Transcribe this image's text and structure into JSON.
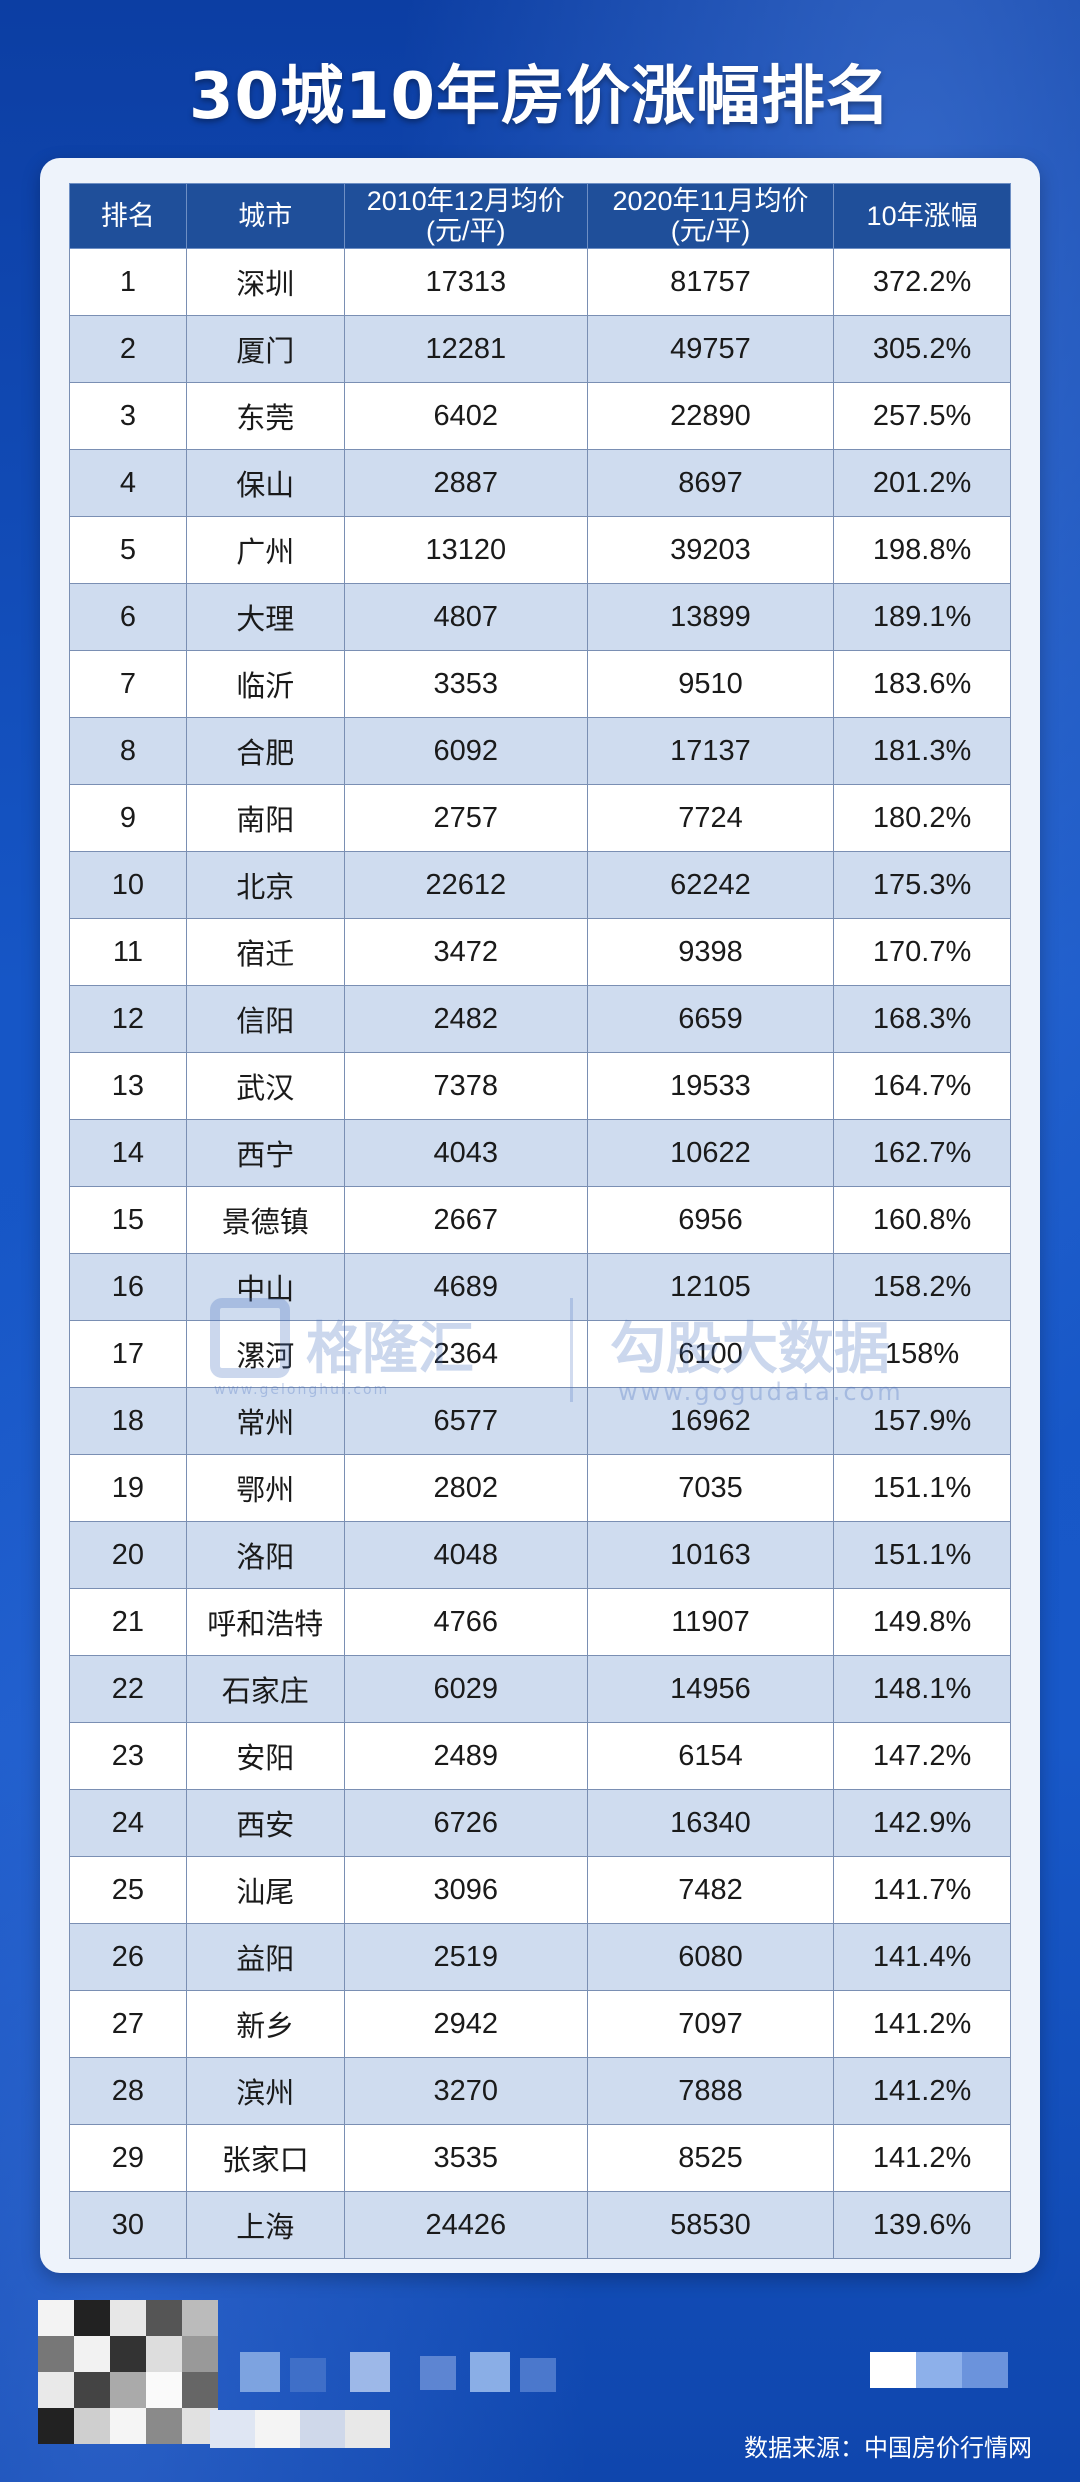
{
  "title": "30城10年房价涨幅排名",
  "table": {
    "headers": {
      "rank": "排名",
      "city": "城市",
      "price_2010_line1": "2010年12月均价",
      "price_2010_line2": "(元/平)",
      "price_2020_line1": "2020年11月均价",
      "price_2020_line2": "(元/平)",
      "growth": "10年涨幅"
    },
    "rows": [
      {
        "rank": "1",
        "city": "深圳",
        "p2010": "17313",
        "p2020": "81757",
        "growth": "372.2%"
      },
      {
        "rank": "2",
        "city": "厦门",
        "p2010": "12281",
        "p2020": "49757",
        "growth": "305.2%"
      },
      {
        "rank": "3",
        "city": "东莞",
        "p2010": "6402",
        "p2020": "22890",
        "growth": "257.5%"
      },
      {
        "rank": "4",
        "city": "保山",
        "p2010": "2887",
        "p2020": "8697",
        "growth": "201.2%"
      },
      {
        "rank": "5",
        "city": "广州",
        "p2010": "13120",
        "p2020": "39203",
        "growth": "198.8%"
      },
      {
        "rank": "6",
        "city": "大理",
        "p2010": "4807",
        "p2020": "13899",
        "growth": "189.1%"
      },
      {
        "rank": "7",
        "city": "临沂",
        "p2010": "3353",
        "p2020": "9510",
        "growth": "183.6%"
      },
      {
        "rank": "8",
        "city": "合肥",
        "p2010": "6092",
        "p2020": "17137",
        "growth": "181.3%"
      },
      {
        "rank": "9",
        "city": "南阳",
        "p2010": "2757",
        "p2020": "7724",
        "growth": "180.2%"
      },
      {
        "rank": "10",
        "city": "北京",
        "p2010": "22612",
        "p2020": "62242",
        "growth": "175.3%"
      },
      {
        "rank": "11",
        "city": "宿迁",
        "p2010": "3472",
        "p2020": "9398",
        "growth": "170.7%"
      },
      {
        "rank": "12",
        "city": "信阳",
        "p2010": "2482",
        "p2020": "6659",
        "growth": "168.3%"
      },
      {
        "rank": "13",
        "city": "武汉",
        "p2010": "7378",
        "p2020": "19533",
        "growth": "164.7%"
      },
      {
        "rank": "14",
        "city": "西宁",
        "p2010": "4043",
        "p2020": "10622",
        "growth": "162.7%"
      },
      {
        "rank": "15",
        "city": "景德镇",
        "p2010": "2667",
        "p2020": "6956",
        "growth": "160.8%"
      },
      {
        "rank": "16",
        "city": "中山",
        "p2010": "4689",
        "p2020": "12105",
        "growth": "158.2%"
      },
      {
        "rank": "17",
        "city": "漯河",
        "p2010": "2364",
        "p2020": "6100",
        "growth": "158%"
      },
      {
        "rank": "18",
        "city": "常州",
        "p2010": "6577",
        "p2020": "16962",
        "growth": "157.9%"
      },
      {
        "rank": "19",
        "city": "鄂州",
        "p2010": "2802",
        "p2020": "7035",
        "growth": "151.1%"
      },
      {
        "rank": "20",
        "city": "洛阳",
        "p2010": "4048",
        "p2020": "10163",
        "growth": "151.1%"
      },
      {
        "rank": "21",
        "city": "呼和浩特",
        "p2010": "4766",
        "p2020": "11907",
        "growth": "149.8%"
      },
      {
        "rank": "22",
        "city": "石家庄",
        "p2010": "6029",
        "p2020": "14956",
        "growth": "148.1%"
      },
      {
        "rank": "23",
        "city": "安阳",
        "p2010": "2489",
        "p2020": "6154",
        "growth": "147.2%"
      },
      {
        "rank": "24",
        "city": "西安",
        "p2010": "6726",
        "p2020": "16340",
        "growth": "142.9%"
      },
      {
        "rank": "25",
        "city": "汕尾",
        "p2010": "3096",
        "p2020": "7482",
        "growth": "141.7%"
      },
      {
        "rank": "26",
        "city": "益阳",
        "p2010": "2519",
        "p2020": "6080",
        "growth": "141.4%"
      },
      {
        "rank": "27",
        "city": "新乡",
        "p2010": "2942",
        "p2020": "7097",
        "growth": "141.2%"
      },
      {
        "rank": "28",
        "city": "滨州",
        "p2010": "3270",
        "p2020": "7888",
        "growth": "141.2%"
      },
      {
        "rank": "29",
        "city": "张家口",
        "p2010": "3535",
        "p2020": "8525",
        "growth": "141.2%"
      },
      {
        "rank": "30",
        "city": "上海",
        "p2010": "24426",
        "p2020": "58530",
        "growth": "139.6%"
      }
    ]
  },
  "watermark": {
    "left_name": "格隆汇",
    "left_sub": "www.gelonghui.com",
    "right_name": "勾股大数据",
    "right_url": "www.gogudata.com"
  },
  "source": "数据来源：中国房价行情网",
  "colors": {
    "background": "#1656c6",
    "header": "#1f4f9a",
    "row_even": "#cfdcef",
    "row_odd": "#ffffff",
    "card": "#eef3fb"
  }
}
